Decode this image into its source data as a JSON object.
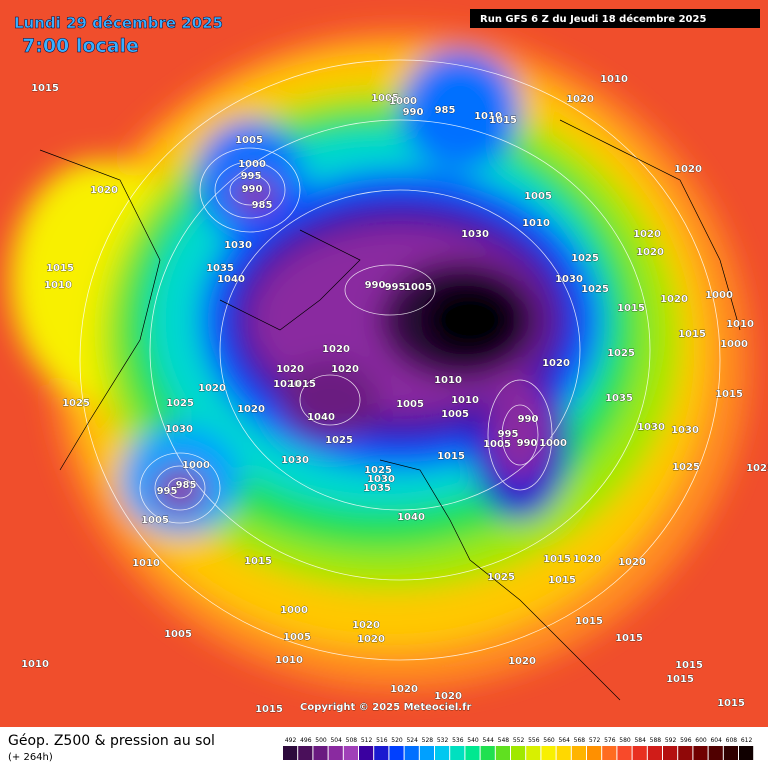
{
  "header": {
    "date": "Lundi 29 décembre 2025",
    "time": "7:00 locale",
    "run": "Run GFS 6 Z du Jeudi 18 décembre 2025",
    "copyright": "Copyright © 2025 Meteociel.fr"
  },
  "footer": {
    "title": "Géop. Z500 & pression au sol",
    "lead": "(+ 264h)"
  },
  "colorscale": {
    "values": [
      492,
      496,
      500,
      504,
      508,
      512,
      516,
      520,
      524,
      528,
      532,
      536,
      540,
      544,
      548,
      552,
      556,
      560,
      564,
      568,
      572,
      576,
      580,
      584,
      588,
      592,
      596,
      600,
      604,
      608,
      612
    ],
    "colors": [
      "#2d0a3c",
      "#4a0f5a",
      "#6a1a80",
      "#8a2aa0",
      "#a040b8",
      "#3a00a0",
      "#1a1ad0",
      "#0040ff",
      "#0070ff",
      "#00a0ff",
      "#00c8f0",
      "#00e0c0",
      "#00e890",
      "#20e050",
      "#60e020",
      "#a0e800",
      "#d8f000",
      "#f8f000",
      "#ffd800",
      "#ffb400",
      "#ff9000",
      "#ff6c20",
      "#f84a2a",
      "#e83020",
      "#d01c18",
      "#b41010",
      "#900808",
      "#700000",
      "#500000",
      "#300000",
      "#100000"
    ]
  },
  "isobar_labels": [
    1015,
    1005,
    1000,
    990,
    985,
    1010,
    1015,
    1010,
    1020,
    1005,
    1000,
    995,
    990,
    985,
    1020,
    1030,
    1035,
    1040,
    1015,
    1010,
    1005,
    1010,
    1030,
    1020,
    1020,
    1020,
    1025,
    1030,
    1025,
    990,
    995,
    1005,
    1015,
    1020,
    1000,
    1015,
    1010,
    1000,
    1025,
    1020,
    1020,
    1020,
    1020,
    1020,
    1015,
    1020,
    1025,
    1025,
    1020,
    1040,
    1010,
    1010,
    1005,
    1005,
    990,
    995,
    990,
    1005,
    1000,
    1035,
    1015,
    1030,
    1030,
    1025,
    1015,
    1030,
    1030,
    1025,
    1030,
    1035,
    1000,
    995,
    985,
    1005,
    1040,
    1025,
    1025,
    1010,
    1015,
    1015,
    1020,
    1020,
    1025,
    1015,
    1000,
    1015,
    1005,
    1005,
    1020,
    1020,
    1015,
    1010,
    1010,
    1020,
    1015,
    1015,
    1020,
    1020,
    1015,
    1015
  ]
}
